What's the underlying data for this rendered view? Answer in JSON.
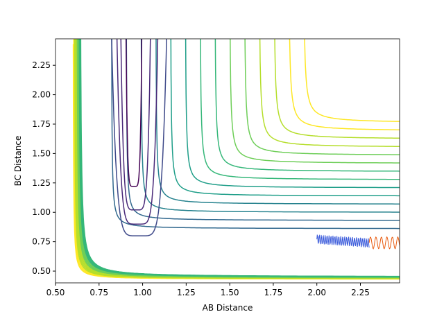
{
  "chart_data": {
    "type": "contour",
    "xlabel": "AB Distance",
    "ylabel": "BC Distance",
    "xlim": [
      0.5,
      2.475
    ],
    "ylim": [
      0.4,
      2.475
    ],
    "xticks": [
      {
        "value": 0.5,
        "label": "0.50"
      },
      {
        "value": 0.75,
        "label": "0.75"
      },
      {
        "value": 1.0,
        "label": "1.00"
      },
      {
        "value": 1.25,
        "label": "1.25"
      },
      {
        "value": 1.5,
        "label": "1.50"
      },
      {
        "value": 1.75,
        "label": "1.75"
      },
      {
        "value": 2.0,
        "label": "2.00"
      },
      {
        "value": 2.25,
        "label": "2.25"
      }
    ],
    "yticks": [
      {
        "value": 0.5,
        "label": "0.50"
      },
      {
        "value": 0.75,
        "label": "0.75"
      },
      {
        "value": 1.0,
        "label": "1.00"
      },
      {
        "value": 1.25,
        "label": "1.25"
      },
      {
        "value": 1.5,
        "label": "1.50"
      },
      {
        "value": 1.75,
        "label": "1.75"
      },
      {
        "value": 2.0,
        "label": "2.00"
      },
      {
        "value": 2.25,
        "label": "2.25"
      }
    ]
  }
}
